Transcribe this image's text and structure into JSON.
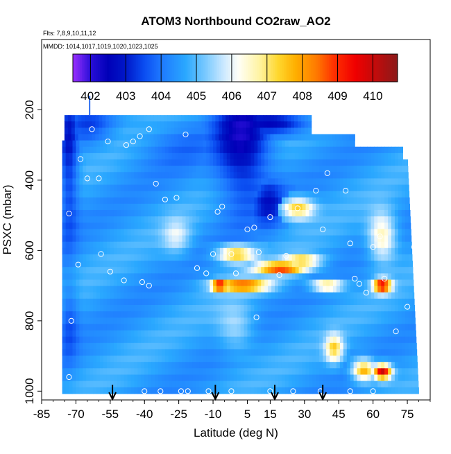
{
  "chart_data": {
    "type": "heatmap",
    "title": "ATOM3 Northbound CO2raw_AO2",
    "subtitle_flights": "Flts: 7,8,9,10,11,12",
    "subtitle_dates": "MMDD: 1014,1017,1019,1020,1023,1025",
    "xlabel": "Latitude (deg N)",
    "ylabel": "PSXC (mbar)",
    "xlim": [
      -85,
      85
    ],
    "ylim": [
      1025,
      0
    ],
    "x_ticks": [
      -85,
      -70,
      -55,
      -40,
      -25,
      -10,
      5,
      15,
      30,
      45,
      60,
      75
    ],
    "y_ticks": [
      200,
      400,
      600,
      800,
      1000
    ],
    "colorbar": {
      "min": 401.5,
      "max": 410.7,
      "ticks": [
        402,
        403,
        404,
        405,
        406,
        407,
        408,
        409,
        410
      ],
      "stops": [
        {
          "v": 401.5,
          "c": "#9b30ff"
        },
        {
          "v": 402.0,
          "c": "#2a0fd8"
        },
        {
          "v": 402.5,
          "c": "#0000b8"
        },
        {
          "v": 403.0,
          "c": "#0018c8"
        },
        {
          "v": 403.5,
          "c": "#0a4bf0"
        },
        {
          "v": 404.0,
          "c": "#1e78ff"
        },
        {
          "v": 404.7,
          "c": "#2aa8ff"
        },
        {
          "v": 405.3,
          "c": "#80ccff"
        },
        {
          "v": 405.8,
          "c": "#cfeaff"
        },
        {
          "v": 406.2,
          "c": "#fffff6"
        },
        {
          "v": 406.8,
          "c": "#fff3a0"
        },
        {
          "v": 407.3,
          "c": "#ffd830"
        },
        {
          "v": 407.8,
          "c": "#ffb000"
        },
        {
          "v": 408.4,
          "c": "#ff7a00"
        },
        {
          "v": 408.9,
          "c": "#ff3000"
        },
        {
          "v": 409.5,
          "c": "#f00000"
        },
        {
          "v": 410.0,
          "c": "#c80a0a"
        },
        {
          "v": 410.7,
          "c": "#8b1a1a"
        }
      ]
    },
    "curtain_extent": {
      "lat_min": -76,
      "lat_max": 80,
      "p_top": 215,
      "p_bottom": 1000
    },
    "background_value": 404.5,
    "features": [
      {
        "lat": -73,
        "p": 340,
        "value": 403.0,
        "sx": 4,
        "sy": 230
      },
      {
        "lat": -64,
        "p": 240,
        "value": 403.6,
        "sx": 10,
        "sy": 60
      },
      {
        "lat": 3,
        "p": 290,
        "value": 402.3,
        "sx": 12,
        "sy": 170
      },
      {
        "lat": 16,
        "p": 240,
        "value": 402.6,
        "sx": 16,
        "sy": 35
      },
      {
        "lat": 14,
        "p": 460,
        "value": 403.0,
        "sx": 7,
        "sy": 70
      },
      {
        "lat": -25,
        "p": 300,
        "value": 404.0,
        "sx": 18,
        "sy": 70
      },
      {
        "lat": 0,
        "p": 610,
        "value": 407.6,
        "sx": 8,
        "sy": 25
      },
      {
        "lat": -7,
        "p": 700,
        "value": 409.8,
        "sx": 4,
        "sy": 16
      },
      {
        "lat": 3,
        "p": 700,
        "value": 408.6,
        "sx": 12,
        "sy": 18
      },
      {
        "lat": 20,
        "p": 650,
        "value": 408.8,
        "sx": 11,
        "sy": 18
      },
      {
        "lat": 29,
        "p": 630,
        "value": 407.5,
        "sx": 8,
        "sy": 18
      },
      {
        "lat": 27,
        "p": 480,
        "value": 407.5,
        "sx": 7,
        "sy": 30
      },
      {
        "lat": 40,
        "p": 700,
        "value": 407.6,
        "sx": 7,
        "sy": 16
      },
      {
        "lat": 64,
        "p": 700,
        "value": 409.6,
        "sx": 4,
        "sy": 20
      },
      {
        "lat": 64,
        "p": 945,
        "value": 410.0,
        "sx": 4,
        "sy": 22
      },
      {
        "lat": 56,
        "p": 940,
        "value": 408.0,
        "sx": 5,
        "sy": 30
      },
      {
        "lat": 43,
        "p": 880,
        "value": 407.2,
        "sx": 4,
        "sy": 40
      },
      {
        "lat": 64,
        "p": 560,
        "value": 406.8,
        "sx": 6,
        "sy": 70
      },
      {
        "lat": -26,
        "p": 560,
        "value": 405.8,
        "sx": 6,
        "sy": 50
      },
      {
        "lat": 0,
        "p": 820,
        "value": 405.6,
        "sx": 8,
        "sy": 70
      },
      {
        "lat": -73,
        "p": 800,
        "value": 403.6,
        "sx": 4,
        "sy": 120
      }
    ],
    "sample_points": [
      [
        -73,
        495
      ],
      [
        -68,
        340
      ],
      [
        -72,
        800
      ],
      [
        -73,
        960
      ],
      [
        -63,
        255
      ],
      [
        -60,
        395
      ],
      [
        -56,
        290
      ],
      [
        -45,
        290
      ],
      [
        -42,
        275
      ],
      [
        -38,
        255
      ],
      [
        -35,
        410
      ],
      [
        -31,
        455
      ],
      [
        -26,
        450
      ],
      [
        -22,
        270
      ],
      [
        -17,
        650
      ],
      [
        -13,
        665
      ],
      [
        -10,
        610
      ],
      [
        -8,
        490
      ],
      [
        -6,
        475
      ],
      [
        -2,
        610
      ],
      [
        0,
        665
      ],
      [
        5,
        540
      ],
      [
        8,
        535
      ],
      [
        9,
        790
      ],
      [
        10,
        605
      ],
      [
        15,
        505
      ],
      [
        19,
        670
      ],
      [
        22,
        615
      ],
      [
        27,
        480
      ],
      [
        35,
        430
      ],
      [
        38,
        540
      ],
      [
        40,
        380
      ],
      [
        48,
        430
      ],
      [
        50,
        580
      ],
      [
        52,
        680
      ],
      [
        54,
        695
      ],
      [
        57,
        720
      ],
      [
        60,
        590
      ],
      [
        63,
        560
      ],
      [
        65,
        680
      ],
      [
        70,
        830
      ],
      [
        75,
        760
      ],
      [
        78,
        590
      ],
      [
        -65,
        395
      ],
      [
        -59,
        610
      ],
      [
        -48,
        300
      ],
      [
        -40,
        1000
      ],
      [
        -33,
        1000
      ],
      [
        -24,
        1000
      ],
      [
        -21,
        1000
      ],
      [
        -12,
        1000
      ],
      [
        -2,
        1000
      ],
      [
        15,
        1000
      ],
      [
        25,
        1000
      ],
      [
        37,
        1000
      ],
      [
        50,
        1000
      ],
      [
        60,
        1000
      ],
      [
        -69,
        640
      ],
      [
        -55,
        660
      ],
      [
        -41,
        690
      ],
      [
        -49,
        685
      ],
      [
        -38,
        700
      ]
    ],
    "flight_markers": [
      -54,
      -9,
      17,
      38
    ],
    "colorbar_tick_labels": [
      "402",
      "403",
      "404",
      "405",
      "406",
      "407",
      "408",
      "409",
      "410"
    ],
    "x_tick_labels": [
      "-85",
      "-70",
      "-55",
      "-40",
      "-25",
      "-10",
      "5",
      "15",
      "30",
      "45",
      "60",
      "75"
    ],
    "y_tick_labels": [
      "200",
      "400",
      "600",
      "800",
      "1000"
    ]
  }
}
